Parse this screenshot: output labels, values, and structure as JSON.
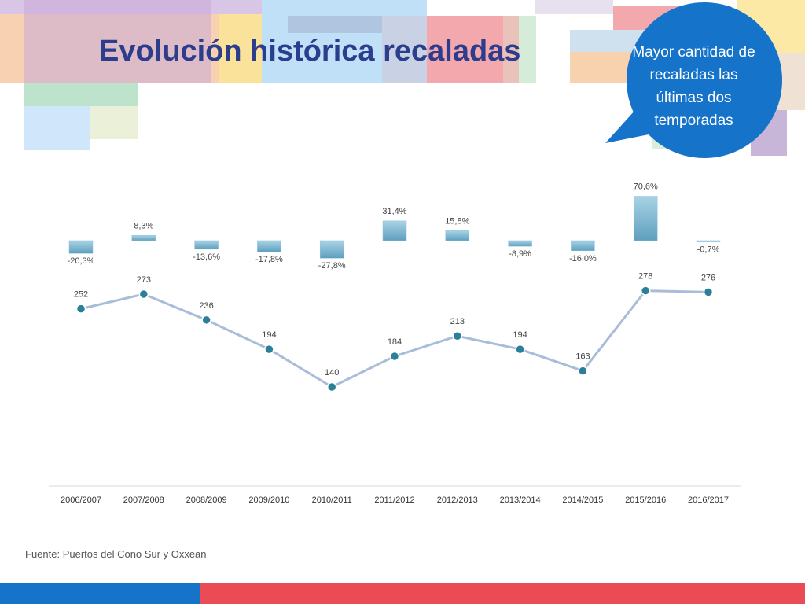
{
  "slide": {
    "title": "Evolución histórica recaladas",
    "source": "Fuente: Puertos del Cono Sur y Oxxean",
    "callout": "Mayor cantidad de recaladas las últimas dos temporadas",
    "colors": {
      "title": "#2b3d8c",
      "callout": "#1573c9",
      "line": "#a9bcd8",
      "marker": "#2b7f98",
      "bar": "#7fb9d3",
      "footer_blue": "#1573c9",
      "footer_red": "#ea4b55"
    }
  },
  "chart_data": {
    "type": "line",
    "categories": [
      "2006/2007",
      "2007/2008",
      "2008/2009",
      "2009/2010",
      "2010/2011",
      "2011/2012",
      "2012/2013",
      "2013/2014",
      "2014/2015",
      "2015/2016",
      "2016/2017"
    ],
    "series": [
      {
        "type": "line",
        "values": [
          252,
          273,
          236,
          194,
          140,
          184,
          213,
          194,
          163,
          278,
          276
        ],
        "labels": [
          "252",
          "273",
          "236",
          "194",
          "140",
          "184",
          "213",
          "194",
          "163",
          "278",
          "276"
        ]
      },
      {
        "type": "bar",
        "values": [
          -20.3,
          8.3,
          -13.6,
          -17.8,
          -27.8,
          31.4,
          15.8,
          -8.9,
          -16.0,
          70.6,
          -0.7
        ],
        "labels": [
          "-20,3%",
          "8,3%",
          "-13,6%",
          "-17,8%",
          "-27,8%",
          "31,4%",
          "15,8%",
          "-8,9%",
          "-16,0%",
          "70,6%",
          "-0,7%"
        ]
      }
    ],
    "legend": "none",
    "grid": false
  }
}
